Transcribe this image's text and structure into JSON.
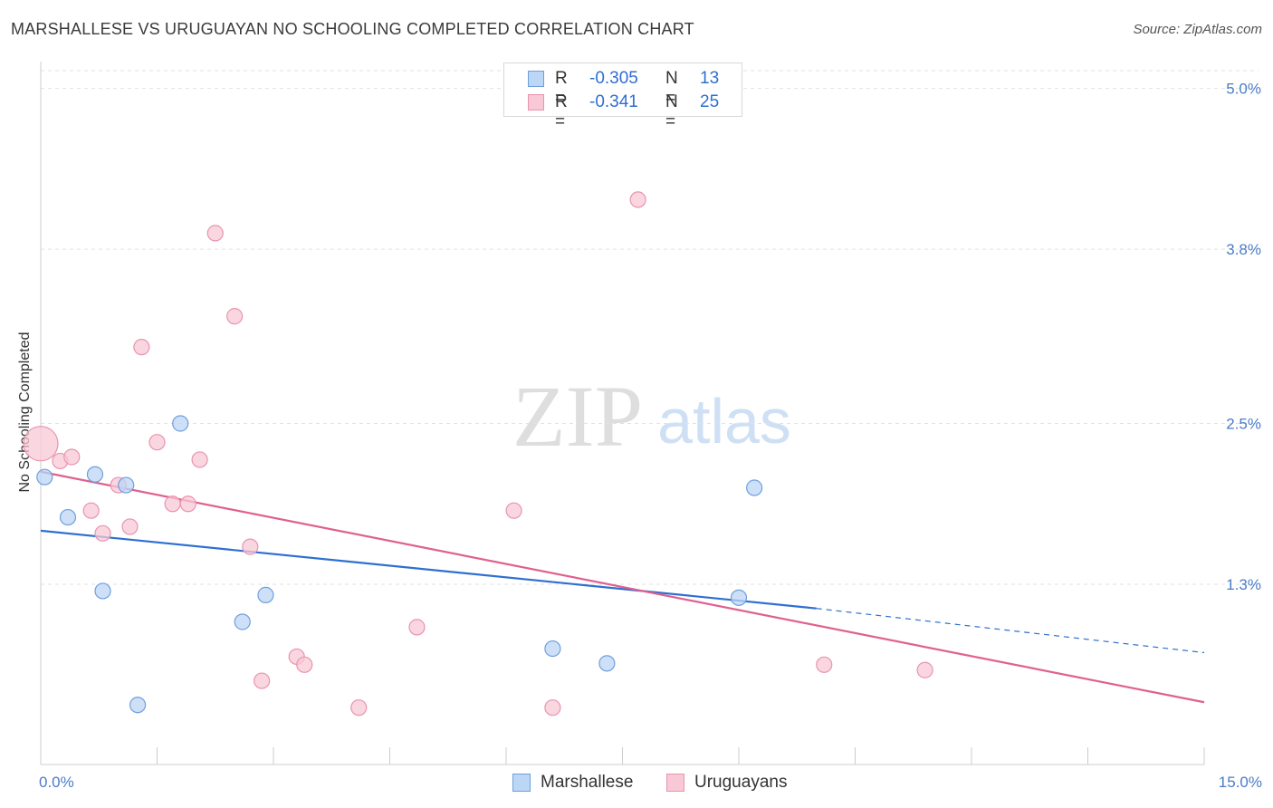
{
  "title": "MARSHALLESE VS URUGUAYAN NO SCHOOLING COMPLETED CORRELATION CHART",
  "source": "Source: ZipAtlas.com",
  "watermark": {
    "zip": "ZIP",
    "atlas": "atlas"
  },
  "colors": {
    "blue": "#2f6fd0",
    "blue_fill": "#bcd6f5",
    "blue_stroke": "#6f9fdc",
    "pink": "#e0608f",
    "pink_fill": "#f8c8d6",
    "pink_stroke": "#e894b0",
    "grid": "#e2e2e2",
    "tick_text": "#4a7cc9"
  },
  "legend_top": [
    {
      "r_label": "R =",
      "r_value": "-0.305",
      "n_label": "N =",
      "n_value": "13"
    },
    {
      "r_label": "R =",
      "r_value": "-0.341",
      "n_label": "N =",
      "n_value": "25"
    }
  ],
  "legend_bottom": [
    "Marshallese",
    "Uruguayans"
  ],
  "chart_data": {
    "type": "scatter",
    "title": "MARSHALLESE VS URUGUAYAN NO SCHOOLING COMPLETED CORRELATION CHART",
    "xlabel": "",
    "ylabel": "No Schooling Completed",
    "xlim": [
      0,
      15
    ],
    "ylim": [
      0.05,
      5.2
    ],
    "x_tick_labels": [
      {
        "value": 0,
        "label": "0.0%"
      },
      {
        "value": 15,
        "label": "15.0%"
      }
    ],
    "y_tick_labels": [
      {
        "value": 1.3,
        "label": "1.3%"
      },
      {
        "value": 2.5,
        "label": "2.5%"
      },
      {
        "value": 3.8,
        "label": "3.8%"
      },
      {
        "value": 5.0,
        "label": "5.0%"
      }
    ],
    "grid": true,
    "legend_position": "top-center",
    "series": [
      {
        "name": "Marshallese",
        "color": "#2f6fd0",
        "r": -0.305,
        "n": 13,
        "points": [
          [
            0.05,
            2.1
          ],
          [
            0.35,
            1.8
          ],
          [
            0.7,
            2.12
          ],
          [
            0.8,
            1.25
          ],
          [
            1.1,
            2.04
          ],
          [
            1.25,
            0.4
          ],
          [
            1.8,
            2.5
          ],
          [
            2.6,
            1.02
          ],
          [
            2.9,
            1.22
          ],
          [
            6.6,
            0.82
          ],
          [
            7.3,
            0.71
          ],
          [
            9.0,
            1.2
          ],
          [
            9.2,
            2.02
          ]
        ],
        "trend": {
          "x0": 0,
          "y0": 1.7,
          "x1": 10,
          "y1": 1.12,
          "dashed_to_x": 15,
          "dashed_to_y": 0.79
        }
      },
      {
        "name": "Uruguayans",
        "color": "#e0608f",
        "r": -0.341,
        "n": 25,
        "points": [
          [
            0.0,
            2.35
          ],
          [
            0.25,
            2.22
          ],
          [
            0.4,
            2.25
          ],
          [
            0.65,
            1.85
          ],
          [
            0.8,
            1.68
          ],
          [
            1.0,
            2.04
          ],
          [
            1.15,
            1.73
          ],
          [
            1.3,
            3.07
          ],
          [
            1.5,
            2.36
          ],
          [
            1.7,
            1.9
          ],
          [
            1.9,
            1.9
          ],
          [
            2.05,
            2.23
          ],
          [
            2.25,
            3.92
          ],
          [
            2.5,
            3.3
          ],
          [
            2.7,
            1.58
          ],
          [
            2.85,
            0.58
          ],
          [
            3.3,
            0.76
          ],
          [
            3.4,
            0.7
          ],
          [
            4.1,
            0.38
          ],
          [
            4.85,
            0.98
          ],
          [
            6.1,
            1.85
          ],
          [
            6.6,
            0.38
          ],
          [
            7.7,
            4.17
          ],
          [
            10.1,
            0.7
          ],
          [
            11.4,
            0.66
          ]
        ],
        "trend": {
          "x0": 0,
          "y0": 2.14,
          "x1": 15,
          "y1": 0.42
        }
      }
    ]
  }
}
